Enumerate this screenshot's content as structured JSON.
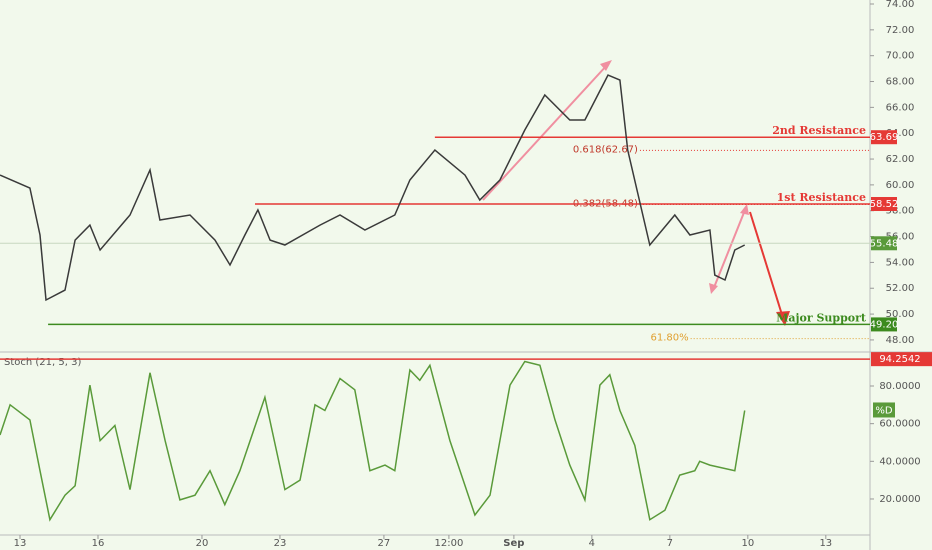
{
  "chart_data": [
    {
      "type": "line",
      "color": "#3a3a3a",
      "xlim": [
        -0.77,
        32.7
      ],
      "ylim": [
        47.22,
        74.31
      ],
      "yticks": [
        {
          "value": 48,
          "label": "48.00"
        },
        {
          "value": 50,
          "label": "50.00"
        },
        {
          "value": 52,
          "label": "52.00"
        },
        {
          "value": 54,
          "label": "54.00"
        },
        {
          "value": 56,
          "label": "56.00"
        },
        {
          "value": 58,
          "label": "58.00"
        },
        {
          "value": 60,
          "label": "60.00"
        },
        {
          "value": 62,
          "label": "62.00"
        },
        {
          "value": 64,
          "label": "64.00"
        },
        {
          "value": 66,
          "label": "66.00"
        },
        {
          "value": 68,
          "label": "68.00"
        },
        {
          "value": 70,
          "label": "70.00"
        },
        {
          "value": 72,
          "label": "72.00"
        },
        {
          "value": 74,
          "label": "74.00"
        }
      ],
      "x": [
        -0.77,
        0.38,
        0.77,
        1.0,
        1.73,
        2.12,
        2.69,
        3.08,
        4.23,
        5.0,
        5.38,
        6.54,
        7.5,
        8.08,
        8.65,
        9.15,
        9.62,
        10.19,
        11.54,
        12.31,
        13.27,
        14.42,
        15.0,
        15.96,
        17.12,
        17.69,
        18.46,
        19.42,
        20.19,
        21.15,
        21.73,
        22.62,
        23.08,
        23.38,
        24.23,
        25.19,
        25.77,
        26.54,
        26.73,
        27.12,
        27.5,
        27.88
      ],
      "values": [
        60.76,
        59.76,
        56.12,
        51.09,
        51.86,
        55.73,
        56.89,
        54.96,
        57.67,
        61.15,
        57.28,
        57.67,
        55.73,
        53.8,
        56.12,
        58.06,
        55.73,
        55.35,
        56.89,
        57.67,
        56.51,
        57.67,
        60.38,
        62.7,
        60.76,
        58.83,
        60.38,
        64.25,
        66.96,
        65.02,
        65.02,
        68.5,
        68.12,
        62.7,
        55.35,
        57.67,
        56.12,
        56.51,
        53.02,
        52.64,
        54.96,
        55.35
      ],
      "levels": [
        {
          "label": "2nd Resistance",
          "value": 63.69,
          "x_start": 15.96,
          "color": "#e53935"
        },
        {
          "label": "1st Resistance",
          "value": 58.52,
          "x_start": 9.04,
          "color": "#e53935"
        },
        {
          "label": "Major Support",
          "value": 49.2,
          "value_label": "49.20",
          "x_start": 1.08,
          "color": "#3d8b1f"
        }
      ],
      "fibs": [
        {
          "label": "0.618(62.67)",
          "value": 62.67,
          "x_start": 23.85
        },
        {
          "label": "0.382(58.48)",
          "value": 58.48,
          "x_start": 23.85
        },
        {
          "label": "61.80%",
          "value": 48.1,
          "x_start": 25.8
        }
      ],
      "fib_color": "#e0a030",
      "last_price": 55.48,
      "last_color": "#5a9a3a"
    },
    {
      "type": "line",
      "title": "Stoch (21, 5, 3)",
      "color": "#5a9a3a",
      "series_label": "%D",
      "xlim": [
        -0.77,
        32.7
      ],
      "ylim": [
        0.87,
        96.46
      ],
      "yticks": [
        {
          "value": 20,
          "label": "20.0000"
        },
        {
          "value": 40,
          "label": "40.0000"
        },
        {
          "value": 60,
          "label": "60.0000"
        },
        {
          "value": 80,
          "label": "80.0000"
        }
      ],
      "xticks": [
        {
          "value": 0,
          "label": "13"
        },
        {
          "value": 3,
          "label": "16"
        },
        {
          "value": 7,
          "label": "20"
        },
        {
          "value": 10,
          "label": "23"
        },
        {
          "value": 14,
          "label": "27"
        },
        {
          "value": 16.5,
          "label": "12:00"
        },
        {
          "value": 19,
          "label": "Sep"
        },
        {
          "value": 22,
          "label": "4"
        },
        {
          "value": 25,
          "label": "7"
        },
        {
          "value": 28,
          "label": "10"
        },
        {
          "value": 31,
          "label": "13"
        }
      ],
      "x": [
        -0.77,
        -0.38,
        0.38,
        0.77,
        1.15,
        1.73,
        2.12,
        2.69,
        3.08,
        3.65,
        4.23,
        5.0,
        5.58,
        6.15,
        6.73,
        7.31,
        7.88,
        8.46,
        9.42,
        10.19,
        10.77,
        11.35,
        11.73,
        12.31,
        12.88,
        13.46,
        14.04,
        14.42,
        15.0,
        15.38,
        15.77,
        16.54,
        17.5,
        18.08,
        18.85,
        19.42,
        20.0,
        20.58,
        21.15,
        21.73,
        22.31,
        22.69,
        23.08,
        23.65,
        24.23,
        24.81,
        25.38,
        25.96,
        26.15,
        26.54,
        27.5,
        27.88
      ],
      "values": [
        54,
        70,
        62,
        35,
        9,
        22,
        27,
        80.5,
        51,
        59,
        25,
        87,
        51,
        19.5,
        22,
        35,
        17,
        35,
        74,
        25,
        30,
        70,
        67,
        84,
        78,
        35,
        38,
        35,
        88.5,
        83,
        91,
        51,
        11.5,
        22,
        80.5,
        93,
        91,
        62,
        38,
        19.5,
        80.5,
        86,
        67,
        48.5,
        9,
        14,
        32.7,
        35,
        40,
        38,
        35,
        67
      ],
      "level": 94.2542,
      "level_color": "#e53935"
    }
  ]
}
